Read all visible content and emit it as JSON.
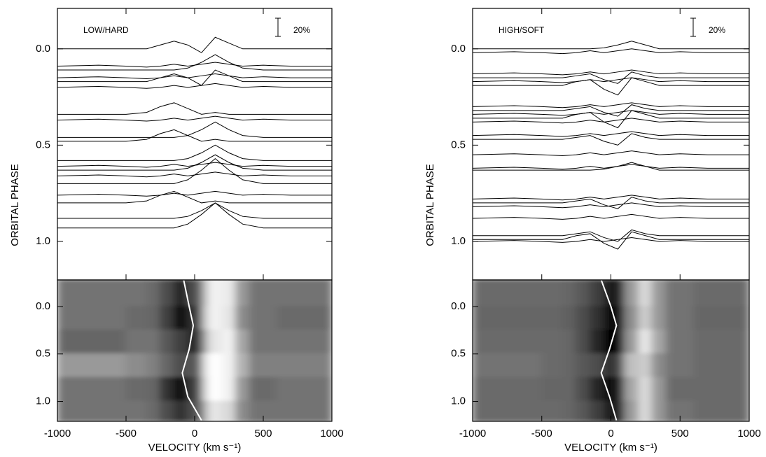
{
  "chart_data": [
    {
      "type": "trailed-spectra",
      "title": "LOW/HARD",
      "scale_label": "20%",
      "ylabel": "ORBITAL PHASE",
      "xlabel": "VELOCITY (km s⁻¹)",
      "xlim": [
        -1000,
        1000
      ],
      "xticks": [
        -1000,
        -500,
        0,
        500,
        1000
      ],
      "ylim": [
        -0.21,
        1.2
      ],
      "y_inverted": true,
      "yticks": [
        {
          "value": 0,
          "label": "0.0"
        },
        {
          "value": 0.5,
          "label": "0.5"
        },
        {
          "value": 1,
          "label": "1.0"
        }
      ],
      "x": [
        -1000,
        -700,
        -500,
        -350,
        -250,
        -150,
        -50,
        50,
        150,
        250,
        350,
        500,
        700,
        1000
      ],
      "spectra": [
        [
          0,
          0,
          0,
          0,
          -0.02,
          -0.04,
          -0.02,
          0.02,
          -0.06,
          -0.03,
          0,
          0,
          0,
          0
        ],
        [
          0.09,
          0.085,
          0.09,
          0.095,
          0.09,
          0.08,
          0.09,
          0.08,
          0.07,
          0.08,
          0.09,
          0.085,
          0.09,
          0.09
        ],
        [
          0.11,
          0.11,
          0.11,
          0.11,
          0.11,
          0.11,
          0.1,
          0.07,
          0.03,
          0.07,
          0.1,
          0.11,
          0.11,
          0.11
        ],
        [
          0.15,
          0.145,
          0.15,
          0.155,
          0.15,
          0.14,
          0.15,
          0.14,
          0.13,
          0.14,
          0.15,
          0.145,
          0.15,
          0.15
        ],
        [
          0.17,
          0.17,
          0.17,
          0.17,
          0.15,
          0.13,
          0.15,
          0.19,
          0.11,
          0.14,
          0.17,
          0.17,
          0.17,
          0.17
        ],
        [
          0.2,
          0.195,
          0.2,
          0.205,
          0.2,
          0.19,
          0.2,
          0.19,
          0.18,
          0.19,
          0.2,
          0.195,
          0.2,
          0.2
        ],
        [
          0.34,
          0.34,
          0.34,
          0.33,
          0.3,
          0.28,
          0.31,
          0.34,
          0.33,
          0.34,
          0.34,
          0.34,
          0.34,
          0.34
        ],
        [
          0.37,
          0.365,
          0.37,
          0.375,
          0.37,
          0.36,
          0.37,
          0.36,
          0.35,
          0.36,
          0.37,
          0.365,
          0.37,
          0.37
        ],
        [
          0.46,
          0.46,
          0.46,
          0.46,
          0.46,
          0.46,
          0.45,
          0.42,
          0.38,
          0.42,
          0.45,
          0.46,
          0.46,
          0.46
        ],
        [
          0.48,
          0.48,
          0.48,
          0.47,
          0.44,
          0.42,
          0.45,
          0.48,
          0.47,
          0.48,
          0.48,
          0.48,
          0.48,
          0.48
        ],
        [
          0.58,
          0.58,
          0.58,
          0.58,
          0.58,
          0.58,
          0.57,
          0.54,
          0.5,
          0.54,
          0.57,
          0.58,
          0.58,
          0.58
        ],
        [
          0.61,
          0.605,
          0.61,
          0.615,
          0.61,
          0.6,
          0.61,
          0.6,
          0.59,
          0.6,
          0.61,
          0.605,
          0.61,
          0.61
        ],
        [
          0.63,
          0.63,
          0.63,
          0.63,
          0.63,
          0.63,
          0.62,
          0.59,
          0.55,
          0.59,
          0.62,
          0.63,
          0.63,
          0.63
        ],
        [
          0.66,
          0.655,
          0.66,
          0.665,
          0.66,
          0.65,
          0.66,
          0.65,
          0.64,
          0.65,
          0.66,
          0.655,
          0.66,
          0.66
        ],
        [
          0.7,
          0.7,
          0.7,
          0.7,
          0.7,
          0.7,
          0.68,
          0.63,
          0.57,
          0.63,
          0.68,
          0.7,
          0.7,
          0.7
        ],
        [
          0.76,
          0.755,
          0.76,
          0.765,
          0.76,
          0.75,
          0.76,
          0.75,
          0.74,
          0.75,
          0.76,
          0.755,
          0.76,
          0.76
        ],
        [
          0.8,
          0.8,
          0.8,
          0.79,
          0.76,
          0.74,
          0.77,
          0.8,
          0.79,
          0.8,
          0.8,
          0.8,
          0.8,
          0.8
        ],
        [
          0.88,
          0.88,
          0.88,
          0.88,
          0.88,
          0.88,
          0.87,
          0.84,
          0.8,
          0.84,
          0.87,
          0.88,
          0.88,
          0.88
        ],
        [
          0.93,
          0.93,
          0.93,
          0.93,
          0.93,
          0.93,
          0.91,
          0.86,
          0.8,
          0.86,
          0.91,
          0.93,
          0.93,
          0.93
        ]
      ],
      "image": {
        "ylim": [
          -0.28,
          1.21
        ],
        "yticks": [
          {
            "value": 0,
            "label": "0.0"
          },
          {
            "value": 0.5,
            "label": "0.5"
          },
          {
            "value": 1,
            "label": "1.0"
          }
        ],
        "phase_edges": [
          -0.28,
          0,
          0.25,
          0.5,
          0.75,
          1,
          1.21
        ],
        "velocity_edges": [
          -1000,
          -500,
          -350,
          -250,
          -150,
          -50,
          50,
          100,
          200,
          300,
          400,
          600,
          1000
        ],
        "intensity": [
          [
            0.45,
            0.45,
            0.42,
            0.3,
            0.15,
            0.3,
            0.7,
            0.95,
            0.92,
            0.6,
            0.45,
            0.45
          ],
          [
            0.45,
            0.42,
            0.4,
            0.25,
            0.05,
            0.2,
            0.75,
            0.95,
            0.9,
            0.55,
            0.45,
            0.42
          ],
          [
            0.4,
            0.45,
            0.45,
            0.35,
            0.25,
            0.15,
            0.6,
            0.9,
            0.95,
            0.65,
            0.45,
            0.45
          ],
          [
            0.6,
            0.55,
            0.5,
            0.4,
            0.3,
            0.35,
            0.85,
            1,
            0.95,
            0.7,
            0.5,
            0.5
          ],
          [
            0.45,
            0.42,
            0.4,
            0.2,
            0.05,
            0.25,
            0.8,
            1,
            0.95,
            0.6,
            0.42,
            0.45
          ],
          [
            0.45,
            0.45,
            0.42,
            0.3,
            0.2,
            0.3,
            0.65,
            0.9,
            0.85,
            0.55,
            0.45,
            0.45
          ]
        ],
        "curve": {
          "phase": [
            -0.28,
            0,
            0.2,
            0.45,
            0.7,
            0.95,
            1.2
          ],
          "velocity": [
            -80,
            -40,
            -10,
            -40,
            -90,
            -50,
            50
          ]
        }
      }
    },
    {
      "type": "trailed-spectra",
      "title": "HIGH/SOFT",
      "scale_label": "20%",
      "ylabel": "ORBITAL PHASE",
      "xlabel": "VELOCITY (km s⁻¹)",
      "xlim": [
        -1000,
        1000
      ],
      "xticks": [
        -1000,
        -500,
        0,
        500,
        1000
      ],
      "ylim": [
        -0.21,
        1.2
      ],
      "y_inverted": true,
      "yticks": [
        {
          "value": 0,
          "label": "0.0"
        },
        {
          "value": 0.5,
          "label": "0.5"
        },
        {
          "value": 1,
          "label": "1.0"
        }
      ],
      "x": [
        -1000,
        -700,
        -500,
        -350,
        -250,
        -150,
        -50,
        50,
        150,
        250,
        350,
        500,
        700,
        1000
      ],
      "spectra": [
        [
          0,
          0,
          0,
          0,
          0,
          0,
          -0.005,
          -0.02,
          -0.04,
          -0.02,
          0,
          0,
          0,
          0
        ],
        [
          0.02,
          0.015,
          0.02,
          0.025,
          0.02,
          0.01,
          0.02,
          0.01,
          0,
          0.01,
          0.02,
          0.015,
          0.02,
          0.02
        ],
        [
          0.13,
          0.125,
          0.13,
          0.135,
          0.13,
          0.12,
          0.13,
          0.12,
          0.11,
          0.12,
          0.13,
          0.125,
          0.13,
          0.13
        ],
        [
          0.15,
          0.15,
          0.15,
          0.15,
          0.14,
          0.13,
          0.16,
          0.18,
          0.12,
          0.14,
          0.15,
          0.15,
          0.15,
          0.15
        ],
        [
          0.17,
          0.165,
          0.17,
          0.175,
          0.17,
          0.16,
          0.17,
          0.16,
          0.15,
          0.16,
          0.17,
          0.165,
          0.17,
          0.17
        ],
        [
          0.19,
          0.19,
          0.19,
          0.19,
          0.17,
          0.16,
          0.21,
          0.24,
          0.15,
          0.17,
          0.19,
          0.19,
          0.19,
          0.19
        ],
        [
          0.3,
          0.295,
          0.3,
          0.305,
          0.3,
          0.29,
          0.3,
          0.29,
          0.28,
          0.29,
          0.3,
          0.295,
          0.3,
          0.3
        ],
        [
          0.32,
          0.32,
          0.32,
          0.32,
          0.31,
          0.3,
          0.33,
          0.35,
          0.29,
          0.31,
          0.32,
          0.32,
          0.32,
          0.32
        ],
        [
          0.34,
          0.335,
          0.34,
          0.345,
          0.34,
          0.33,
          0.34,
          0.33,
          0.32,
          0.33,
          0.34,
          0.335,
          0.34,
          0.34
        ],
        [
          0.36,
          0.36,
          0.36,
          0.36,
          0.34,
          0.33,
          0.38,
          0.41,
          0.32,
          0.34,
          0.36,
          0.36,
          0.36,
          0.36
        ],
        [
          0.38,
          0.375,
          0.38,
          0.385,
          0.38,
          0.37,
          0.38,
          0.37,
          0.36,
          0.37,
          0.38,
          0.375,
          0.38,
          0.38
        ],
        [
          0.45,
          0.445,
          0.45,
          0.455,
          0.45,
          0.44,
          0.45,
          0.44,
          0.43,
          0.44,
          0.45,
          0.445,
          0.45,
          0.45
        ],
        [
          0.47,
          0.47,
          0.47,
          0.47,
          0.46,
          0.45,
          0.48,
          0.5,
          0.44,
          0.46,
          0.47,
          0.47,
          0.47,
          0.47
        ],
        [
          0.55,
          0.545,
          0.55,
          0.555,
          0.55,
          0.54,
          0.55,
          0.54,
          0.53,
          0.54,
          0.55,
          0.545,
          0.55,
          0.55
        ],
        [
          0.62,
          0.615,
          0.62,
          0.625,
          0.62,
          0.61,
          0.62,
          0.61,
          0.6,
          0.61,
          0.62,
          0.615,
          0.62,
          0.62
        ],
        [
          0.63,
          0.63,
          0.63,
          0.63,
          0.63,
          0.63,
          0.625,
          0.61,
          0.59,
          0.61,
          0.63,
          0.63,
          0.63,
          0.63
        ],
        [
          0.78,
          0.775,
          0.78,
          0.785,
          0.78,
          0.77,
          0.78,
          0.77,
          0.76,
          0.77,
          0.78,
          0.775,
          0.78,
          0.78
        ],
        [
          0.8,
          0.8,
          0.8,
          0.8,
          0.79,
          0.78,
          0.81,
          0.83,
          0.77,
          0.79,
          0.8,
          0.8,
          0.8,
          0.8
        ],
        [
          0.82,
          0.815,
          0.82,
          0.825,
          0.82,
          0.81,
          0.82,
          0.81,
          0.8,
          0.81,
          0.82,
          0.815,
          0.82,
          0.82
        ],
        [
          0.88,
          0.875,
          0.88,
          0.885,
          0.88,
          0.87,
          0.88,
          0.87,
          0.86,
          0.87,
          0.88,
          0.875,
          0.88,
          0.88
        ],
        [
          0.97,
          0.97,
          0.97,
          0.97,
          0.96,
          0.95,
          0.98,
          1,
          0.94,
          0.96,
          0.97,
          0.97,
          0.97,
          0.97
        ],
        [
          0.99,
          0.99,
          0.99,
          0.99,
          0.97,
          0.96,
          1.01,
          1.04,
          0.95,
          0.97,
          0.99,
          0.99,
          0.99,
          0.99
        ],
        [
          1,
          0.995,
          1,
          1.005,
          1,
          0.99,
          1,
          0.99,
          0.98,
          0.99,
          1,
          0.995,
          1,
          1
        ]
      ],
      "image": {
        "ylim": [
          -0.28,
          1.21
        ],
        "yticks": [
          {
            "value": 0,
            "label": "0.0"
          },
          {
            "value": 0.5,
            "label": "0.5"
          },
          {
            "value": 1,
            "label": "1.0"
          }
        ],
        "phase_edges": [
          -0.28,
          0,
          0.25,
          0.5,
          0.75,
          1,
          1.21
        ],
        "velocity_edges": [
          -1000,
          -500,
          -350,
          -250,
          -150,
          -50,
          50,
          100,
          200,
          300,
          400,
          600,
          1000
        ],
        "intensity": [
          [
            0.42,
            0.42,
            0.4,
            0.35,
            0.25,
            0.1,
            0.15,
            0.6,
            0.85,
            0.6,
            0.45,
            0.42
          ],
          [
            0.4,
            0.4,
            0.38,
            0.3,
            0.2,
            0.05,
            0.05,
            0.55,
            0.8,
            0.6,
            0.45,
            0.4
          ],
          [
            0.42,
            0.42,
            0.4,
            0.3,
            0.15,
            0,
            0.1,
            0.6,
            0.9,
            0.65,
            0.45,
            0.42
          ],
          [
            0.45,
            0.42,
            0.4,
            0.35,
            0.3,
            0.2,
            0.35,
            0.75,
            0.8,
            0.55,
            0.45,
            0.42
          ],
          [
            0.42,
            0.4,
            0.4,
            0.3,
            0.15,
            0.05,
            0.2,
            0.65,
            0.85,
            0.6,
            0.42,
            0.42
          ],
          [
            0.42,
            0.42,
            0.4,
            0.35,
            0.25,
            0.1,
            0.15,
            0.6,
            0.85,
            0.6,
            0.45,
            0.42
          ]
        ],
        "curve": {
          "phase": [
            -0.28,
            0,
            0.2,
            0.45,
            0.7,
            0.95,
            1.2
          ],
          "velocity": [
            -70,
            0,
            40,
            -10,
            -70,
            -10,
            40
          ]
        }
      }
    }
  ]
}
